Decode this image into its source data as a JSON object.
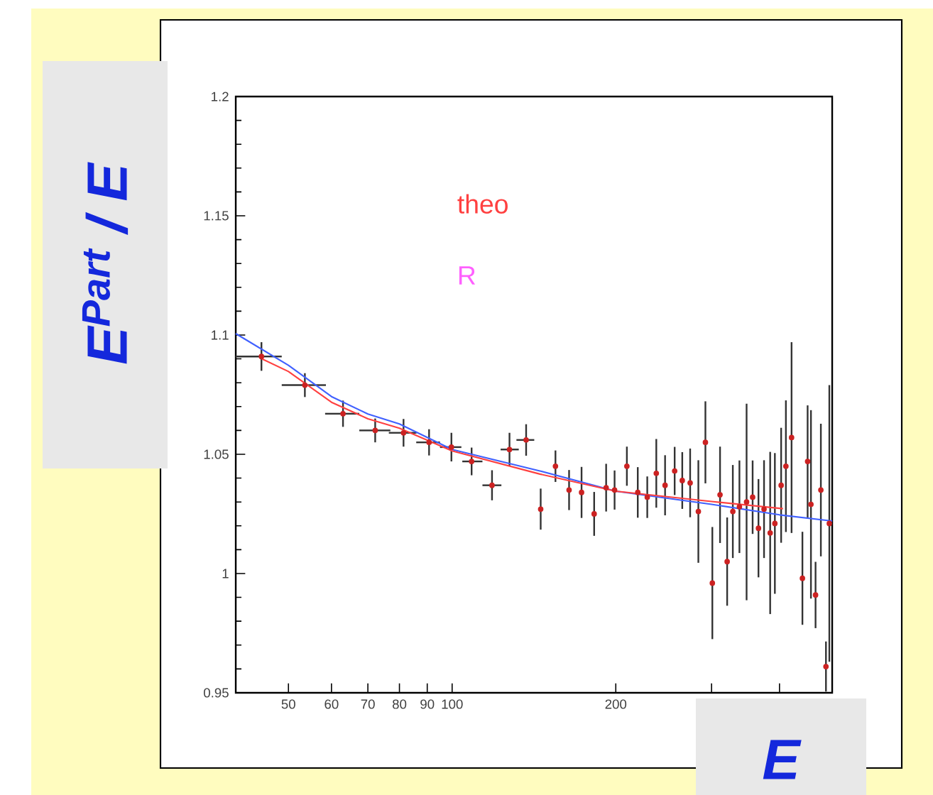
{
  "chart_data": {
    "type": "scatter",
    "xlabel": "E",
    "ylabel": "E$^{Part}$ / E",
    "annotations": [
      "R"
    ],
    "log": "x",
    "xlim": [
      40,
      500
    ],
    "ylim": [
      0.95,
      1.2
    ],
    "xticks": [
      50,
      60,
      70,
      80,
      90,
      100,
      200,
      {
        "value": 300,
        "label": null
      },
      {
        "value": 400,
        "label": null
      }
    ],
    "yticks": [
      0.95,
      1,
      1.05,
      1.1,
      1.15,
      1.2
    ],
    "series": [
      {
        "marker": "circle",
        "color": "#cc2222",
        "x": [
          44.6,
          53.6,
          63,
          72.2,
          81.4,
          90.7,
          99.7,
          108.6,
          118.4,
          127.5,
          136.8,
          145.5,
          154.9,
          164.1,
          173,
          182.5,
          192,
          199,
          209.6,
          219.5,
          228.5,
          237.4,
          246.4,
          256.6,
          265,
          274,
          283.7,
          292.3,
          301,
          311,
          320.5,
          328.3,
          337.6,
          348,
          357,
          366,
          374.7,
          384.6,
          392.3,
          402.8,
          411,
          421,
          440.8,
          450.6,
          457,
          466,
          476.6,
          487,
          494
        ],
        "values": [
          1.091,
          1.079,
          1.067,
          1.06,
          1.059,
          1.055,
          1.053,
          1.047,
          1.037,
          1.052,
          1.056,
          1.027,
          1.045,
          1.035,
          1.034,
          1.025,
          1.036,
          1.035,
          1.045,
          1.034,
          1.032,
          1.042,
          1.037,
          1.043,
          1.039,
          1.038,
          1.026,
          1.055,
          0.996,
          1.033,
          1.005,
          1.026,
          1.028,
          1.03,
          1.032,
          1.019,
          1.027,
          1.017,
          1.021,
          1.037,
          1.045,
          1.057,
          0.998,
          1.047,
          1.029,
          0.991,
          1.035,
          0.961,
          1.021
        ],
        "errors": [
          0.006,
          0.005,
          0.0055,
          0.005,
          0.0058,
          0.0055,
          0.006,
          0.0058,
          0.0063,
          0.007,
          0.0066,
          0.0086,
          0.0066,
          0.0084,
          0.0107,
          0.0092,
          0.01,
          0.0082,
          0.0082,
          0.0106,
          0.0087,
          0.0144,
          0.0126,
          0.0101,
          0.0119,
          0.0144,
          0.0215,
          0.0172,
          0.0235,
          0.0202,
          0.0185,
          0.0195,
          0.0194,
          0.0412,
          0.0154,
          0.0206,
          0.0205,
          0.034,
          0.0295,
          0.0241,
          0.0276,
          0.04,
          0.0195,
          0.0235,
          0.0395,
          0.0139,
          0.0278,
          0.0105,
          0.058
        ],
        "xerrors": [
          [
            40,
            48.6
          ],
          [
            48.6,
            58.6
          ],
          [
            58.4,
            67.5
          ],
          [
            67.5,
            77
          ],
          [
            76.5,
            86
          ],
          [
            85.9,
            95
          ],
          [
            95,
            104
          ],
          [
            104.4,
            113.7
          ],
          [
            113.7,
            123.2
          ],
          [
            122.8,
            132.6
          ],
          [
            131.3,
            141.6
          ],
          null,
          null,
          null,
          null,
          null,
          null,
          null,
          null,
          null,
          null,
          null,
          null,
          null,
          null,
          null,
          null,
          null,
          null,
          null,
          null,
          null,
          null,
          null,
          null,
          null,
          null,
          null,
          null,
          null,
          null,
          null,
          null,
          null,
          null,
          null,
          null,
          null,
          null
        ]
      },
      {
        "type": "line",
        "color": "#4060ff",
        "x": [
          40,
          50,
          60,
          70,
          80,
          100,
          145,
          200,
          300,
          400,
          500
        ],
        "values": [
          1.1006,
          1.0873,
          1.0742,
          1.0669,
          1.0627,
          1.052,
          1.043,
          1.0345,
          1.029,
          1.0246,
          1.022
        ]
      },
      {
        "type": "line",
        "name": "theo",
        "color": "#ff4040",
        "x": [
          44.6,
          50,
          60,
          70,
          80,
          100,
          145,
          200,
          300,
          406
        ],
        "values": [
          1.0901,
          1.0847,
          1.0718,
          1.0649,
          1.0609,
          1.0514,
          1.0417,
          1.0345,
          1.0302,
          1.0272
        ]
      }
    ]
  }
}
